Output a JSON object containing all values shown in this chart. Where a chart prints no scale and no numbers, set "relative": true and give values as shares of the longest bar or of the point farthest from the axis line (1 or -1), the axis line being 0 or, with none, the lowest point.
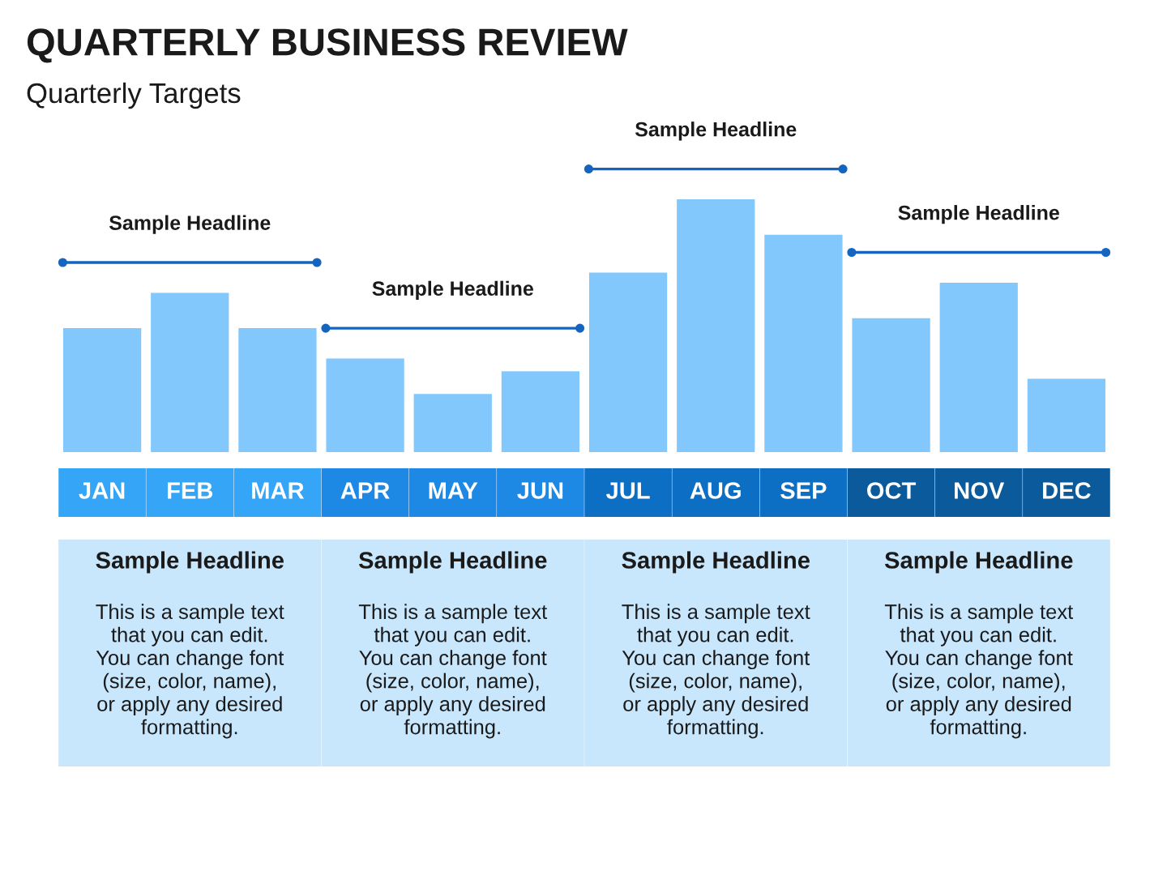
{
  "chart_data": {
    "type": "bar",
    "title": "QUARTERLY BUSINESS REVIEW",
    "subtitle": "Quarterly Targets",
    "relative": true,
    "categories": [
      "JAN",
      "FEB",
      "MAR",
      "APR",
      "MAY",
      "JUN",
      "JUL",
      "AUG",
      "SEP",
      "OCT",
      "NOV",
      "DEC"
    ],
    "values": [
      0.49,
      0.63,
      0.49,
      0.37,
      0.23,
      0.32,
      0.71,
      1,
      0.86,
      0.53,
      0.67,
      0.29
    ],
    "color": "#82c8fc",
    "annotations": [
      "Sample Headline",
      "Sample Headline",
      "Sample Headline",
      "Sample Headline",
      "Sample Headline",
      "This is a sample text\nthat you can edit.\nYou can change font\n(size, color, name),\nor apply any desired\nformatting.",
      "Sample Headline",
      "This is a sample text\nthat you can edit.\nYou can change font\n(size, color, name),\nor apply any desired\nformatting.",
      "Sample Headline",
      "This is a sample text\nthat you can edit.\nYou can change font\n(size, color, name),\nor apply any desired\nformatting.",
      "Sample Headline",
      "This is a sample text\nthat you can edit.\nYou can change font\n(size, color, name),\nor apply any desired\nformatting."
    ]
  }
}
